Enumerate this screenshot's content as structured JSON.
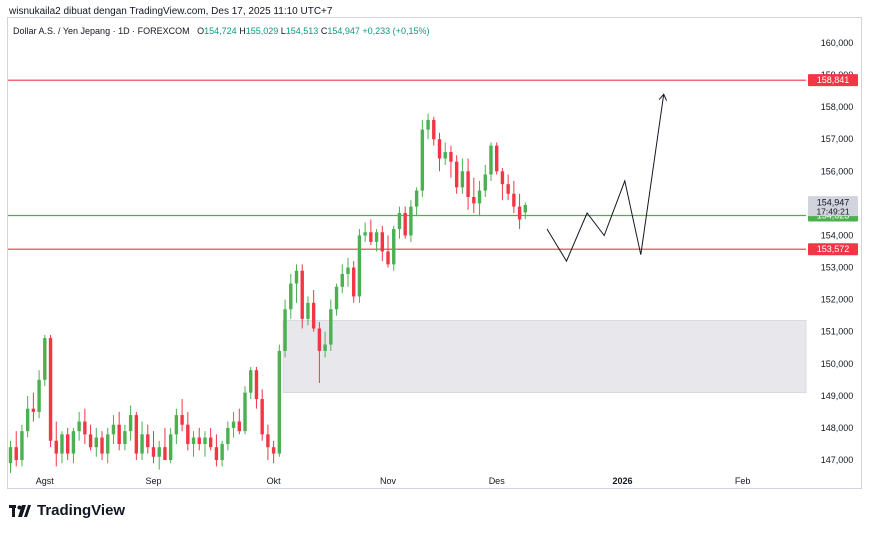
{
  "header": {
    "caption": "wisnukaila2 dibuat dengan TradingView.com, Des 17, 2025 11:10 UTC+7"
  },
  "symbol": {
    "name": "Dollar A.S. / Yen Jepang · 1D · FOREXCOM",
    "open_label": "O",
    "open": "154,724",
    "high_label": "H",
    "high": "155,029",
    "low_label": "L",
    "low": "154,513",
    "close_label": "C",
    "close": "154,947",
    "change": "+0,233 (+0,15%)"
  },
  "brand": {
    "name": "TradingView"
  },
  "colors": {
    "up": "#4caf50",
    "down": "#f23645",
    "resistance": "#f23645",
    "support": "#4caf50",
    "zone": "#e8e8ec",
    "text": "#131722",
    "axis_text": "#131722"
  },
  "chart_data": {
    "type": "candlestick",
    "symbol": "USDJPY",
    "timeframe": "1D",
    "ylim": [
      146.6,
      160.9
    ],
    "y_ticks": [
      "147,000",
      "148,000",
      "149,000",
      "150,000",
      "151,000",
      "152,000",
      "153,000",
      "154,000",
      "155,000",
      "156,000",
      "157,000",
      "158,000",
      "159,000",
      "160,000"
    ],
    "x_ticks": [
      {
        "label": "Agst",
        "index": 6
      },
      {
        "label": "Sep",
        "index": 25
      },
      {
        "label": "Okt",
        "index": 46
      },
      {
        "label": "Nov",
        "index": 66
      },
      {
        "label": "Des",
        "index": 85
      },
      {
        "label": "2026",
        "index": 107
      },
      {
        "label": "Feb",
        "index": 128
      }
    ],
    "candles": [
      {
        "o": 146.9,
        "h": 147.6,
        "l": 146.6,
        "c": 147.4
      },
      {
        "o": 147.4,
        "h": 147.9,
        "l": 146.8,
        "c": 147.0
      },
      {
        "o": 147.0,
        "h": 148.1,
        "l": 146.8,
        "c": 147.9
      },
      {
        "o": 147.9,
        "h": 149.0,
        "l": 147.7,
        "c": 148.6
      },
      {
        "o": 148.6,
        "h": 149.1,
        "l": 148.2,
        "c": 148.5
      },
      {
        "o": 148.5,
        "h": 149.8,
        "l": 148.3,
        "c": 149.5
      },
      {
        "o": 149.5,
        "h": 150.9,
        "l": 149.3,
        "c": 150.8
      },
      {
        "o": 150.8,
        "h": 150.9,
        "l": 147.4,
        "c": 147.6
      },
      {
        "o": 147.6,
        "h": 148.2,
        "l": 146.8,
        "c": 147.2
      },
      {
        "o": 147.2,
        "h": 147.9,
        "l": 146.9,
        "c": 147.8
      },
      {
        "o": 147.8,
        "h": 148.0,
        "l": 147.0,
        "c": 147.2
      },
      {
        "o": 147.2,
        "h": 148.0,
        "l": 146.9,
        "c": 147.9
      },
      {
        "o": 147.9,
        "h": 148.5,
        "l": 147.6,
        "c": 148.2
      },
      {
        "o": 148.2,
        "h": 148.6,
        "l": 147.5,
        "c": 147.8
      },
      {
        "o": 147.8,
        "h": 148.1,
        "l": 147.3,
        "c": 147.4
      },
      {
        "o": 147.4,
        "h": 148.0,
        "l": 147.1,
        "c": 147.7
      },
      {
        "o": 147.7,
        "h": 147.9,
        "l": 147.0,
        "c": 147.2
      },
      {
        "o": 147.2,
        "h": 148.0,
        "l": 146.9,
        "c": 147.8
      },
      {
        "o": 147.8,
        "h": 148.4,
        "l": 147.5,
        "c": 148.1
      },
      {
        "o": 148.1,
        "h": 148.5,
        "l": 147.3,
        "c": 147.5
      },
      {
        "o": 147.5,
        "h": 148.1,
        "l": 147.3,
        "c": 147.9
      },
      {
        "o": 147.9,
        "h": 148.7,
        "l": 147.6,
        "c": 148.4
      },
      {
        "o": 148.4,
        "h": 148.5,
        "l": 147.0,
        "c": 147.2
      },
      {
        "o": 147.2,
        "h": 148.2,
        "l": 147.0,
        "c": 147.8
      },
      {
        "o": 147.8,
        "h": 148.1,
        "l": 147.2,
        "c": 147.4
      },
      {
        "o": 147.4,
        "h": 147.9,
        "l": 146.9,
        "c": 147.1
      },
      {
        "o": 147.1,
        "h": 147.6,
        "l": 146.7,
        "c": 147.4
      },
      {
        "o": 147.4,
        "h": 148.0,
        "l": 147.0,
        "c": 147.0
      },
      {
        "o": 147.0,
        "h": 148.0,
        "l": 146.9,
        "c": 147.8
      },
      {
        "o": 147.8,
        "h": 148.6,
        "l": 147.5,
        "c": 148.4
      },
      {
        "o": 148.4,
        "h": 148.9,
        "l": 147.9,
        "c": 148.1
      },
      {
        "o": 148.1,
        "h": 148.5,
        "l": 147.3,
        "c": 147.5
      },
      {
        "o": 147.5,
        "h": 147.9,
        "l": 147.1,
        "c": 147.7
      },
      {
        "o": 147.7,
        "h": 148.0,
        "l": 147.3,
        "c": 147.5
      },
      {
        "o": 147.5,
        "h": 147.9,
        "l": 147.1,
        "c": 147.7
      },
      {
        "o": 147.7,
        "h": 148.0,
        "l": 147.3,
        "c": 147.4
      },
      {
        "o": 147.4,
        "h": 147.8,
        "l": 146.8,
        "c": 147.0
      },
      {
        "o": 147.0,
        "h": 147.6,
        "l": 146.8,
        "c": 147.5
      },
      {
        "o": 147.5,
        "h": 148.2,
        "l": 147.3,
        "c": 148.0
      },
      {
        "o": 148.0,
        "h": 148.5,
        "l": 147.7,
        "c": 148.2
      },
      {
        "o": 148.2,
        "h": 148.6,
        "l": 147.8,
        "c": 147.9
      },
      {
        "o": 147.9,
        "h": 149.3,
        "l": 147.8,
        "c": 149.1
      },
      {
        "o": 149.1,
        "h": 149.9,
        "l": 148.9,
        "c": 149.8
      },
      {
        "o": 149.8,
        "h": 149.9,
        "l": 148.6,
        "c": 148.9
      },
      {
        "o": 148.9,
        "h": 149.2,
        "l": 147.6,
        "c": 147.8
      },
      {
        "o": 147.8,
        "h": 148.1,
        "l": 147.0,
        "c": 147.4
      },
      {
        "o": 147.4,
        "h": 147.6,
        "l": 146.9,
        "c": 147.2
      },
      {
        "o": 147.2,
        "h": 150.6,
        "l": 147.1,
        "c": 150.4
      },
      {
        "o": 150.4,
        "h": 152.0,
        "l": 150.2,
        "c": 151.7
      },
      {
        "o": 151.7,
        "h": 152.8,
        "l": 151.4,
        "c": 152.5
      },
      {
        "o": 152.5,
        "h": 153.1,
        "l": 151.9,
        "c": 152.9
      },
      {
        "o": 152.9,
        "h": 153.1,
        "l": 151.1,
        "c": 151.4
      },
      {
        "o": 151.4,
        "h": 152.1,
        "l": 151.2,
        "c": 151.9
      },
      {
        "o": 151.9,
        "h": 152.3,
        "l": 151.0,
        "c": 151.1
      },
      {
        "o": 151.1,
        "h": 151.3,
        "l": 149.4,
        "c": 150.4
      },
      {
        "o": 150.4,
        "h": 151.0,
        "l": 150.2,
        "c": 150.6
      },
      {
        "o": 150.6,
        "h": 152.0,
        "l": 150.4,
        "c": 151.7
      },
      {
        "o": 151.7,
        "h": 152.5,
        "l": 151.5,
        "c": 152.4
      },
      {
        "o": 152.4,
        "h": 153.1,
        "l": 152.2,
        "c": 152.8
      },
      {
        "o": 152.8,
        "h": 153.3,
        "l": 152.4,
        "c": 153.0
      },
      {
        "o": 153.0,
        "h": 153.2,
        "l": 151.9,
        "c": 152.1
      },
      {
        "o": 152.1,
        "h": 154.2,
        "l": 151.9,
        "c": 154.0
      },
      {
        "o": 154.0,
        "h": 154.4,
        "l": 153.8,
        "c": 154.1
      },
      {
        "o": 154.1,
        "h": 154.5,
        "l": 153.7,
        "c": 153.8
      },
      {
        "o": 153.8,
        "h": 154.2,
        "l": 153.5,
        "c": 154.1
      },
      {
        "o": 154.1,
        "h": 154.3,
        "l": 153.2,
        "c": 153.5
      },
      {
        "o": 153.5,
        "h": 154.0,
        "l": 153.0,
        "c": 153.1
      },
      {
        "o": 153.1,
        "h": 154.3,
        "l": 152.9,
        "c": 154.2
      },
      {
        "o": 154.2,
        "h": 154.9,
        "l": 153.9,
        "c": 154.7
      },
      {
        "o": 154.7,
        "h": 154.9,
        "l": 153.9,
        "c": 154.0
      },
      {
        "o": 154.0,
        "h": 155.1,
        "l": 153.8,
        "c": 154.9
      },
      {
        "o": 154.9,
        "h": 155.5,
        "l": 154.6,
        "c": 155.4
      },
      {
        "o": 155.4,
        "h": 157.6,
        "l": 155.2,
        "c": 157.3
      },
      {
        "o": 157.3,
        "h": 157.8,
        "l": 157.0,
        "c": 157.6
      },
      {
        "o": 157.6,
        "h": 157.7,
        "l": 156.8,
        "c": 157.0
      },
      {
        "o": 157.0,
        "h": 157.2,
        "l": 156.0,
        "c": 156.4
      },
      {
        "o": 156.4,
        "h": 156.9,
        "l": 156.2,
        "c": 156.6
      },
      {
        "o": 156.6,
        "h": 156.8,
        "l": 155.8,
        "c": 156.3
      },
      {
        "o": 156.3,
        "h": 156.5,
        "l": 155.3,
        "c": 155.5
      },
      {
        "o": 155.5,
        "h": 156.4,
        "l": 155.3,
        "c": 156.0
      },
      {
        "o": 156.0,
        "h": 156.4,
        "l": 154.8,
        "c": 155.2
      },
      {
        "o": 155.2,
        "h": 155.8,
        "l": 154.7,
        "c": 155.0
      },
      {
        "o": 155.0,
        "h": 155.7,
        "l": 154.6,
        "c": 155.4
      },
      {
        "o": 155.4,
        "h": 156.2,
        "l": 155.2,
        "c": 155.9
      },
      {
        "o": 155.9,
        "h": 156.9,
        "l": 155.7,
        "c": 156.8
      },
      {
        "o": 156.8,
        "h": 156.9,
        "l": 155.9,
        "c": 156.0
      },
      {
        "o": 156.0,
        "h": 156.1,
        "l": 155.1,
        "c": 155.6
      },
      {
        "o": 155.6,
        "h": 155.9,
        "l": 155.1,
        "c": 155.3
      },
      {
        "o": 155.3,
        "h": 155.7,
        "l": 154.7,
        "c": 154.9
      },
      {
        "o": 154.9,
        "h": 155.3,
        "l": 154.2,
        "c": 154.5
      },
      {
        "o": 154.72,
        "h": 155.03,
        "l": 154.51,
        "c": 154.95
      }
    ],
    "horizontal_lines": [
      {
        "price": 158.841,
        "label": "158,841",
        "color": "#f23645"
      },
      {
        "price": 154.623,
        "label": "154,623",
        "color": "#4caf50"
      },
      {
        "price": 153.572,
        "label": "153,572",
        "color": "#f23645"
      }
    ],
    "current_price": {
      "price": 154.947,
      "label": "154,947",
      "countdown": "17:49:21"
    },
    "zone": {
      "top": 151.35,
      "bottom": 149.1,
      "start_index": 48
    },
    "projection_path": [
      {
        "i": 93.8,
        "p": 154.2
      },
      {
        "i": 97.2,
        "p": 153.2
      },
      {
        "i": 100.8,
        "p": 154.7
      },
      {
        "i": 103.8,
        "p": 154.0
      },
      {
        "i": 107.4,
        "p": 155.7
      },
      {
        "i": 110.2,
        "p": 153.4
      },
      {
        "i": 114.2,
        "p": 158.4
      }
    ]
  }
}
